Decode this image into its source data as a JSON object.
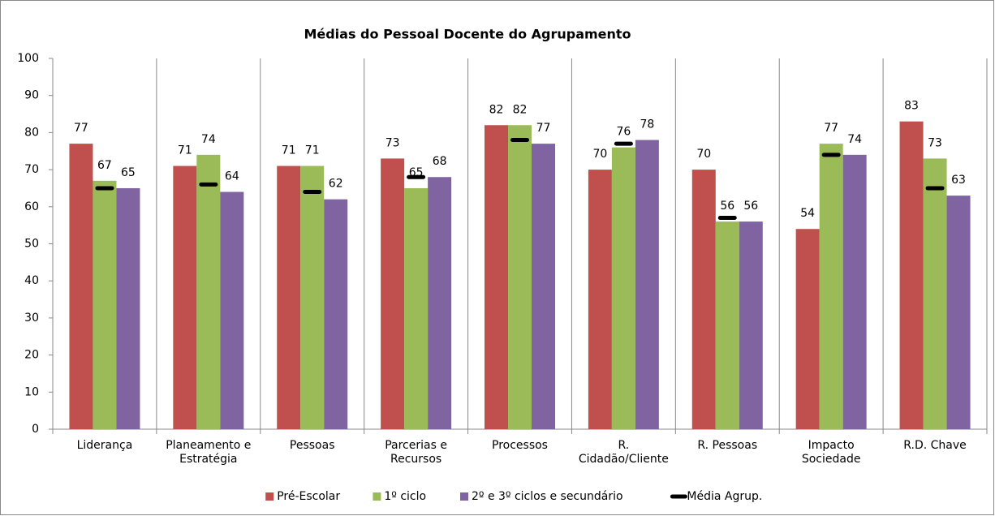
{
  "chart_data": {
    "type": "bar",
    "title": "Médias do Pessoal Docente do Agrupamento",
    "categories": [
      "Liderança",
      "Planeamento e\nEstratégia",
      "Pessoas",
      "Parcerias e\nRecursos",
      "Processos",
      "R.\nCidadão/Cliente",
      "R. Pessoas",
      "Impacto\nSociedade",
      "R.D. Chave"
    ],
    "series": [
      {
        "name": "Pré-Escolar",
        "color": "#c0504d",
        "values": [
          77,
          71,
          71,
          73,
          82,
          70,
          70,
          54,
          83
        ]
      },
      {
        "name": "1º ciclo",
        "color": "#9bbb59",
        "values": [
          67,
          74,
          71,
          65,
          82,
          76,
          56,
          77,
          73
        ]
      },
      {
        "name": "2º e 3º ciclos e secundário",
        "color": "#8064a2",
        "values": [
          65,
          64,
          62,
          68,
          77,
          78,
          56,
          74,
          63
        ]
      },
      {
        "name": "Média Agrup.",
        "color": "#000000",
        "mark": "dash",
        "values": [
          65,
          66,
          64,
          68,
          78,
          77,
          57,
          74,
          65
        ]
      }
    ],
    "data_labels": true,
    "ylim": [
      0,
      100
    ],
    "yticks": [
      0,
      10,
      20,
      30,
      40,
      50,
      60,
      70,
      80,
      90,
      100
    ],
    "grid": "vertical",
    "legend": "bottom"
  }
}
